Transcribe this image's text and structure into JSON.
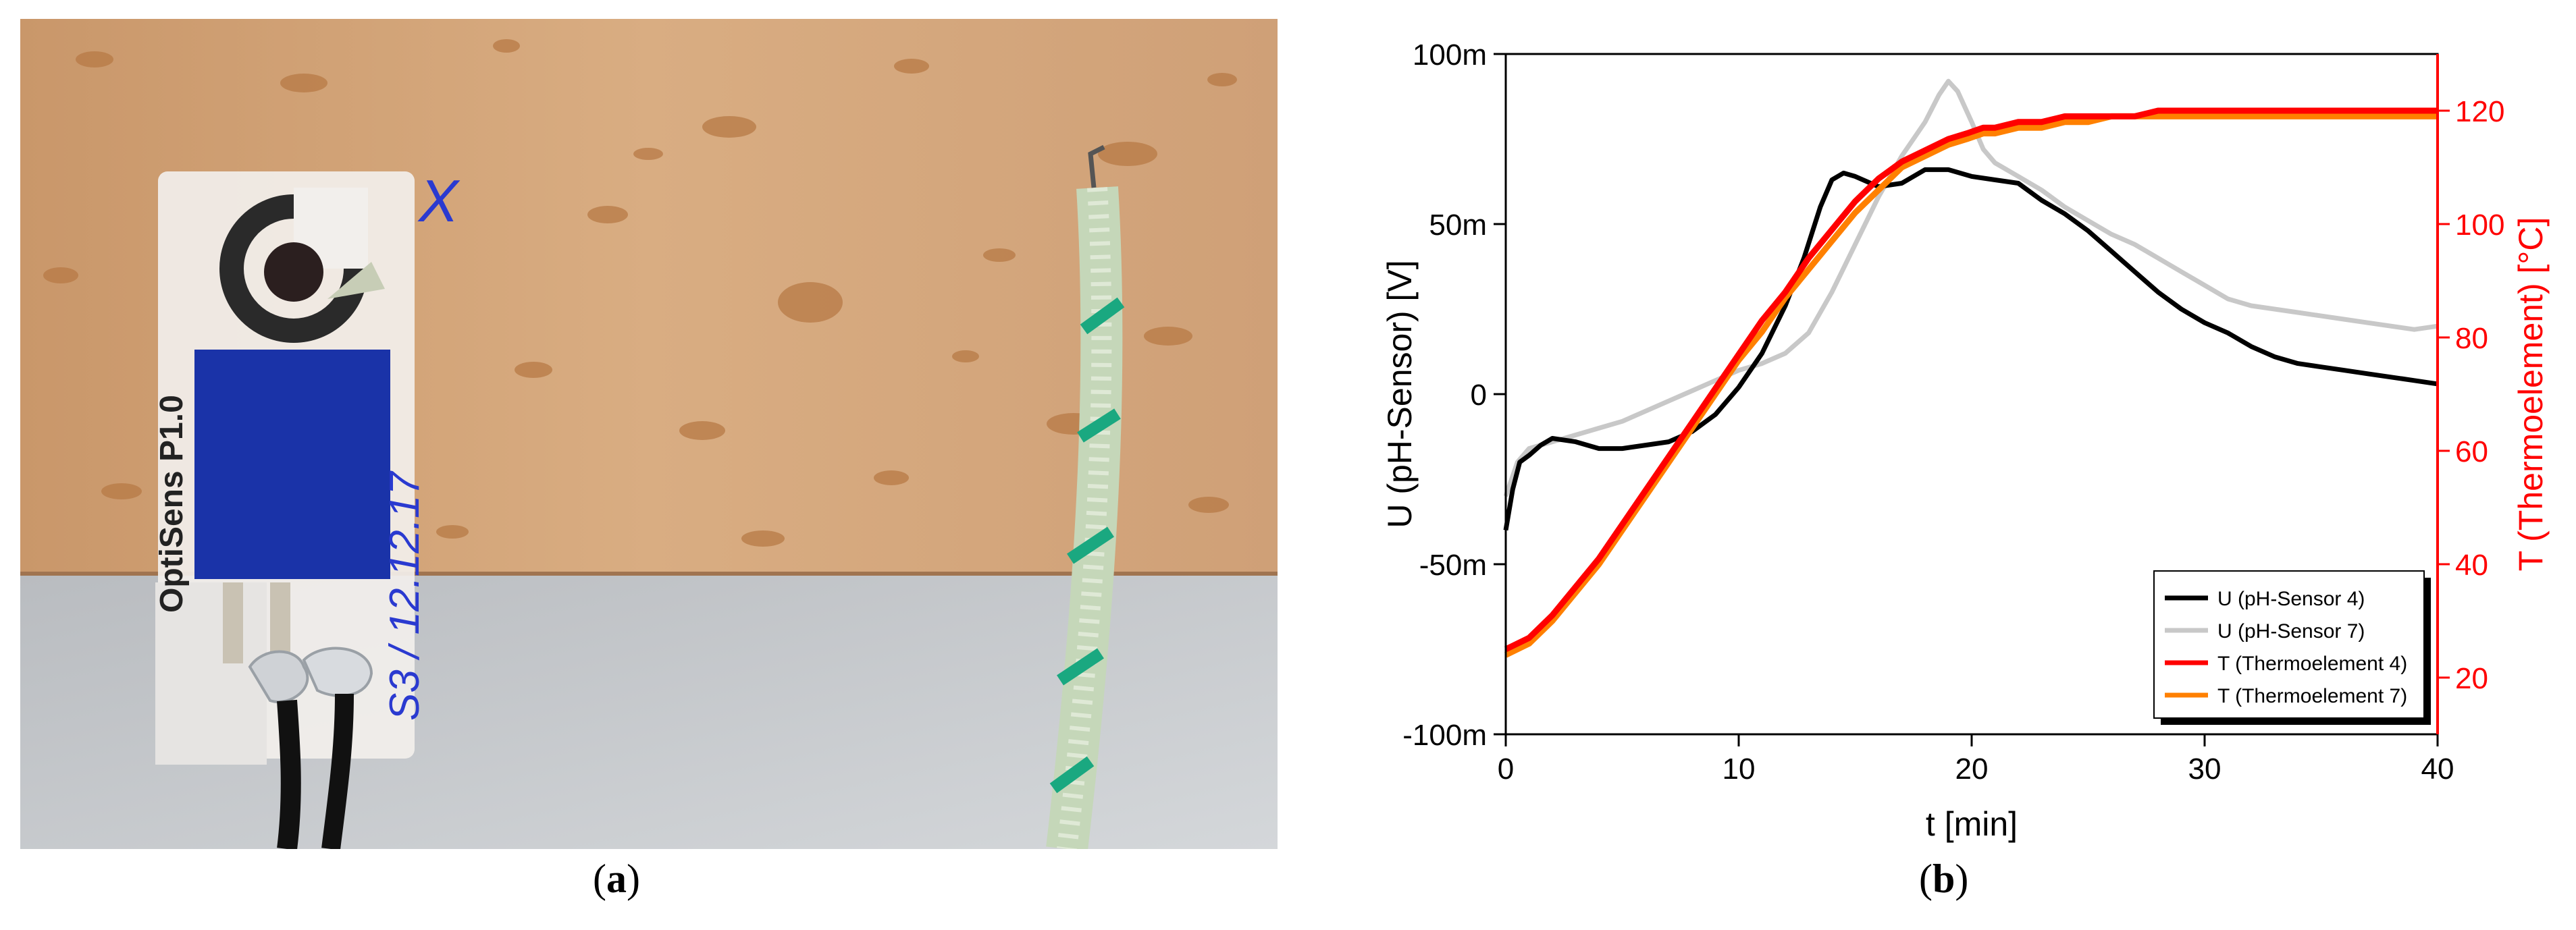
{
  "panel_a": {
    "caption_letter": "a",
    "sensor_label": "OptiSens P1.0",
    "handwritten_label": "S3 / 12.12.17",
    "handwritten_mark": "X"
  },
  "panel_b": {
    "caption_letter": "b"
  },
  "colors": {
    "pH4": "#000000",
    "pH7": "#c8c8c8",
    "T4": "#ff0000",
    "T7": "#ff8000",
    "right_axis": "#ff0000",
    "sensor_blue": "#1a33a8",
    "wood": "#d6a87a"
  },
  "chart_data": {
    "type": "line",
    "xlabel": "t [min]",
    "ylabel": "U (pH-Sensor) [V]",
    "y2label": "T (Thermoelement) [°C]",
    "xlim": [
      0,
      40
    ],
    "ylim": [
      -100,
      100
    ],
    "y2lim": [
      10,
      130
    ],
    "x_ticks": [
      "0",
      "10",
      "20",
      "30",
      "40"
    ],
    "y_ticks": [
      "-100m",
      "-50m",
      "0",
      "50m",
      "100m"
    ],
    "y2_ticks": [
      "20",
      "40",
      "60",
      "80",
      "100",
      "120"
    ],
    "legend_position": "bottom-right",
    "series": [
      {
        "name": "U (pH-Sensor 4)",
        "axis": "left",
        "x": [
          0,
          0.3,
          0.6,
          1,
          1.5,
          2,
          3,
          4,
          5,
          6,
          7,
          8,
          9,
          10,
          11,
          12,
          12.8,
          13.5,
          14,
          14.5,
          15,
          16,
          17,
          18,
          19,
          20,
          21,
          22,
          23,
          24,
          25,
          26,
          27,
          28,
          29,
          30,
          31,
          32,
          33,
          34,
          35,
          36,
          37,
          38,
          39,
          40
        ],
        "y": [
          -40,
          -28,
          -20,
          -18,
          -15,
          -13,
          -14,
          -16,
          -16,
          -15,
          -14,
          -11,
          -6,
          2,
          12,
          26,
          40,
          55,
          63,
          65,
          64,
          61,
          62,
          66,
          66,
          64,
          63,
          62,
          57,
          53,
          48,
          42,
          36,
          30,
          25,
          21,
          18,
          14,
          11,
          9,
          8,
          7,
          6,
          5,
          4,
          3
        ]
      },
      {
        "name": "U (pH-Sensor 7)",
        "axis": "left",
        "x": [
          0,
          0.5,
          1,
          2,
          3,
          4,
          5,
          6,
          7,
          8,
          9,
          10,
          11,
          12,
          13,
          14,
          15,
          16,
          17,
          18,
          18.6,
          19,
          19.4,
          20,
          20.5,
          21,
          22,
          23,
          24,
          25,
          26,
          27,
          28,
          29,
          30,
          31,
          32,
          33,
          34,
          35,
          36,
          37,
          38,
          39,
          40
        ],
        "y": [
          -30,
          -20,
          -16,
          -14,
          -12,
          -10,
          -8,
          -5,
          -2,
          1,
          4,
          7,
          9,
          12,
          18,
          30,
          44,
          58,
          70,
          80,
          88,
          92,
          89,
          80,
          72,
          68,
          64,
          60,
          55,
          51,
          47,
          44,
          40,
          36,
          32,
          28,
          26,
          25,
          24,
          23,
          22,
          21,
          20,
          19,
          20
        ]
      },
      {
        "name": "T (Thermoelement 4)",
        "axis": "right",
        "x": [
          0,
          1,
          2,
          3,
          4,
          5,
          6,
          7,
          8,
          9,
          10,
          11,
          12,
          13,
          14,
          15,
          16,
          17,
          18,
          19,
          19.8,
          20.5,
          21,
          22,
          23,
          24,
          25,
          26,
          27,
          28,
          29,
          30,
          32,
          34,
          36,
          38,
          40
        ],
        "y": [
          25,
          27,
          31,
          36,
          41,
          47,
          53,
          59,
          65,
          71,
          77,
          83,
          88,
          94,
          99,
          104,
          108,
          111,
          113,
          115,
          116,
          117,
          117,
          118,
          118,
          119,
          119,
          119,
          119,
          120,
          120,
          120,
          120,
          120,
          120,
          120,
          120
        ]
      },
      {
        "name": "T (Thermoelement 7)",
        "axis": "right",
        "x": [
          0,
          1,
          2,
          3,
          4,
          5,
          6,
          7,
          8,
          9,
          10,
          11,
          12,
          13,
          14,
          15,
          16,
          17,
          18,
          19,
          19.8,
          20.5,
          21,
          22,
          23,
          24,
          25,
          26,
          27,
          28,
          29,
          30,
          32,
          34,
          36,
          38,
          40
        ],
        "y": [
          24,
          26,
          30,
          35,
          40,
          46,
          52,
          58,
          64,
          70,
          76,
          81,
          87,
          92,
          97,
          102,
          106,
          110,
          112,
          114,
          115,
          116,
          116,
          117,
          117,
          118,
          118,
          119,
          119,
          119,
          119,
          119,
          119,
          119,
          119,
          119,
          119
        ]
      }
    ]
  }
}
